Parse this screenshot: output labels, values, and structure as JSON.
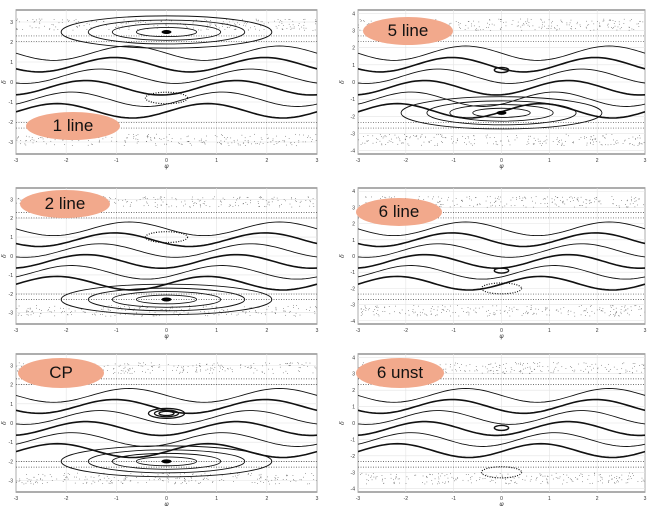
{
  "chart_data": [
    {
      "type": "scatter",
      "badge": "1 line",
      "xlabel": "φ",
      "ylabel": "δ",
      "x_ticks": [
        "-3",
        "-2",
        "-1",
        "0",
        "1",
        "2",
        "3"
      ],
      "y_ticks": [
        "3",
        "2",
        "1",
        "0",
        "-1",
        "-2",
        "-3"
      ],
      "xlim": [
        -3,
        3
      ],
      "ylim": [
        -3.6,
        3.6
      ],
      "grid": true,
      "islands": [
        {
          "x": 0,
          "y": 2.5,
          "type": "main"
        },
        {
          "x": 0,
          "y": -0.8,
          "type": "chain"
        }
      ]
    },
    {
      "type": "scatter",
      "badge": "5 line",
      "xlabel": "φ",
      "ylabel": "δ",
      "x_ticks": [
        "-3",
        "-2",
        "-1",
        "0",
        "1",
        "2",
        "3"
      ],
      "y_ticks": [
        "4",
        "3",
        "2",
        "1",
        "0",
        "-1",
        "-2",
        "-3",
        "-4"
      ],
      "xlim": [
        -3,
        3
      ],
      "ylim": [
        -4.2,
        4.2
      ],
      "grid": true,
      "islands": [
        {
          "x": 0,
          "y": -1.8,
          "type": "main"
        },
        {
          "x": 0,
          "y": 0.7,
          "type": "small"
        }
      ]
    },
    {
      "type": "scatter",
      "badge": "2 line",
      "xlabel": "φ",
      "ylabel": "δ",
      "x_ticks": [
        "-3",
        "-2",
        "-1",
        "0",
        "1",
        "2",
        "3"
      ],
      "y_ticks": [
        "3",
        "2",
        "1",
        "0",
        "-1",
        "-2",
        "-3"
      ],
      "xlim": [
        -3,
        3
      ],
      "ylim": [
        -3.6,
        3.6
      ],
      "grid": true,
      "islands": [
        {
          "x": 0,
          "y": -2.3,
          "type": "main"
        },
        {
          "x": 0,
          "y": 1.0,
          "type": "chain"
        }
      ]
    },
    {
      "type": "scatter",
      "badge": "6 line",
      "xlabel": "φ",
      "ylabel": "δ",
      "x_ticks": [
        "-3",
        "-2",
        "-1",
        "0",
        "1",
        "2",
        "3"
      ],
      "y_ticks": [
        "4",
        "3",
        "2",
        "1",
        "0",
        "-1",
        "-2",
        "-3",
        "-4"
      ],
      "xlim": [
        -3,
        3
      ],
      "ylim": [
        -4.2,
        4.2
      ],
      "grid": true,
      "islands": [
        {
          "x": 0,
          "y": -0.9,
          "type": "small"
        },
        {
          "x": 0,
          "y": -2.0,
          "type": "chain"
        }
      ]
    },
    {
      "type": "scatter",
      "badge": "CP",
      "xlabel": "φ",
      "ylabel": "δ",
      "x_ticks": [
        "-3",
        "-2",
        "-1",
        "0",
        "1",
        "2",
        "3"
      ],
      "y_ticks": [
        "3",
        "2",
        "1",
        "0",
        "-1",
        "-2",
        "-3"
      ],
      "xlim": [
        -3,
        3
      ],
      "ylim": [
        -3.6,
        3.6
      ],
      "grid": true,
      "islands": [
        {
          "x": 0,
          "y": 0.5,
          "type": "nested"
        },
        {
          "x": 0,
          "y": -2.0,
          "type": "main"
        }
      ]
    },
    {
      "type": "scatter",
      "badge": "6 unst",
      "xlabel": "φ",
      "ylabel": "δ",
      "x_ticks": [
        "-3",
        "-2",
        "-1",
        "0",
        "1",
        "2",
        "3"
      ],
      "y_ticks": [
        "4",
        "3",
        "2",
        "1",
        "0",
        "-1",
        "-2",
        "-3",
        "-4"
      ],
      "xlim": [
        -3,
        3
      ],
      "ylim": [
        -4.2,
        4.2
      ],
      "grid": true,
      "islands": [
        {
          "x": 0,
          "y": -0.3,
          "type": "small"
        },
        {
          "x": 0,
          "y": -3.0,
          "type": "chain"
        }
      ]
    }
  ]
}
